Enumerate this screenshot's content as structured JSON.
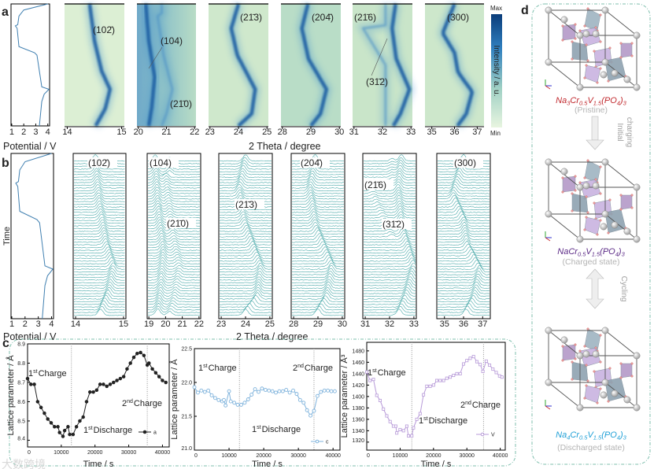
{
  "panel_labels": {
    "a": "a",
    "b": "b",
    "c": "c",
    "d": "d"
  },
  "panel_a": {
    "potential_axis": {
      "ticks": [
        1,
        2,
        3,
        4
      ],
      "label": "Potential / V"
    },
    "potential_curve": {
      "voltage": [
        4.0,
        2.0,
        1.6,
        1.5,
        1.3,
        1.45,
        1.6,
        2.9,
        3.1,
        3.3,
        3.5,
        4.1,
        3.7,
        3.5,
        3.4,
        3.3
      ],
      "time_fraction": [
        0.0,
        0.05,
        0.1,
        0.17,
        0.18,
        0.2,
        0.35,
        0.4,
        0.42,
        0.55,
        0.68,
        0.7,
        0.74,
        0.8,
        0.9,
        1.0
      ]
    },
    "xlabel": "2 Theta / degree",
    "colorbar": {
      "max": "Max",
      "min": "Min",
      "label": "Intensity / a. u.",
      "colors": [
        "#0b3d7a",
        "#2f7fbf",
        "#9fd0c4",
        "#e8f5e0"
      ]
    },
    "heatmaps": [
      {
        "xlim": [
          13.95,
          15.05
        ],
        "ticks": [
          14,
          15
        ],
        "labels": [
          "(102̄)"
        ]
      },
      {
        "xlim": [
          19.95,
          22.05
        ],
        "ticks": [
          20,
          21,
          22
        ],
        "labels": [
          "(104)",
          "(21̄0)"
        ]
      },
      {
        "xlim": [
          22.95,
          25.05
        ],
        "ticks": [
          23,
          24,
          25
        ],
        "labels": [
          "(21̄3)"
        ]
      },
      {
        "xlim": [
          27.95,
          30.05
        ],
        "ticks": [
          28,
          29,
          30
        ],
        "labels": [
          "(204̄)"
        ]
      },
      {
        "xlim": [
          30.95,
          33.05
        ],
        "ticks": [
          31,
          32,
          33
        ],
        "labels": [
          "(21̄6)",
          "(31̄2)"
        ]
      },
      {
        "xlim": [
          34.7,
          37.3
        ],
        "ticks": [
          35,
          36,
          37
        ],
        "labels": [
          "(300)"
        ]
      }
    ]
  },
  "panel_b": {
    "ylabel": "Time",
    "potential_axis": {
      "ticks": [
        1,
        2,
        3,
        4
      ],
      "label": "Potential / V"
    },
    "xlabel": "2 Theta / degree",
    "line_color": "#4aa9a9",
    "waterfalls": [
      {
        "xlim": [
          13.95,
          15.05
        ],
        "ticks": [
          14,
          15
        ],
        "labels": [
          "(102̄)"
        ]
      },
      {
        "xlim": [
          18.9,
          22.1
        ],
        "ticks": [
          19,
          20,
          21,
          22
        ],
        "labels": [
          "(104)",
          "(21̄0)"
        ]
      },
      {
        "xlim": [
          22.9,
          25.1
        ],
        "ticks": [
          23,
          24,
          25
        ],
        "labels": [
          "(21̄3)"
        ]
      },
      {
        "xlim": [
          27.9,
          30.1
        ],
        "ticks": [
          28,
          29,
          30
        ],
        "labels": [
          "(204̄)"
        ]
      },
      {
        "xlim": [
          30.9,
          33.1
        ],
        "ticks": [
          31,
          32,
          33
        ],
        "labels": [
          "(21̄6)",
          "(31̄2)"
        ]
      },
      {
        "xlim": [
          34.6,
          37.4
        ],
        "ticks": [
          35,
          36,
          37
        ],
        "labels": [
          "(300)"
        ]
      }
    ]
  },
  "chart_data": [
    {
      "type": "line",
      "title": "",
      "xlabel": "Time / s",
      "ylabel": "Lattice parameter / Å",
      "xlim": [
        0,
        42000
      ],
      "ylim": [
        8.365,
        8.9
      ],
      "xticks": [
        0,
        10000,
        20000,
        30000,
        40000
      ],
      "yticks": [
        8.4,
        8.5,
        8.6,
        8.7,
        8.8,
        8.9
      ],
      "ytick_labels": [
        "8.4",
        "8.5",
        "8.6",
        "8.7",
        "8.8",
        "8.9"
      ],
      "dividers": [
        13000,
        35500
      ],
      "series": [
        {
          "name": "a",
          "color": "#222222",
          "marker": "circle-filled",
          "x": [
            0,
            1000,
            2000,
            3000,
            4000,
            5000,
            6000,
            7000,
            8000,
            9000,
            9500,
            10500,
            11000,
            12000,
            12500,
            13500,
            14500,
            15500,
            16500,
            17500,
            18500,
            19500,
            20500,
            21500,
            22500,
            23500,
            24500,
            25500,
            26500,
            27500,
            28500,
            29500,
            30500,
            31500,
            32500,
            33500,
            34500,
            35500,
            36000,
            37000,
            38000,
            39000,
            40000,
            41000
          ],
          "y": [
            8.72,
            8.69,
            8.69,
            8.6,
            8.57,
            8.54,
            8.51,
            8.49,
            8.47,
            8.47,
            8.44,
            8.42,
            8.45,
            8.47,
            8.43,
            8.43,
            8.47,
            8.5,
            8.52,
            8.6,
            8.65,
            8.65,
            8.66,
            8.69,
            8.69,
            8.68,
            8.69,
            8.7,
            8.71,
            8.72,
            8.73,
            8.77,
            8.8,
            8.83,
            8.85,
            8.855,
            8.84,
            8.79,
            8.8,
            8.77,
            8.75,
            8.73,
            8.71,
            8.7
          ]
        }
      ],
      "annotations": [
        {
          "num": "1",
          "sup": "st",
          "text": "Charge"
        },
        {
          "num": "1",
          "sup": "st",
          "text": "Discharge"
        },
        {
          "num": "2",
          "sup": "nd",
          "text": "Charge"
        }
      ],
      "legend": "bottom-right"
    },
    {
      "type": "line",
      "title": "",
      "xlabel": "Time / s",
      "ylabel": "Lattice parameter / Å",
      "xlim": [
        0,
        42000
      ],
      "ylim": [
        21.0,
        22.5
      ],
      "xticks": [
        0,
        10000,
        20000,
        30000,
        40000
      ],
      "yticks": [
        21.0,
        21.5,
        22.0,
        22.5
      ],
      "ytick_labels": [
        "21.0",
        "21.5",
        "22.0",
        "22.5"
      ],
      "dividers": [
        13000,
        34500
      ],
      "series": [
        {
          "name": "c",
          "color": "#7fb3dc",
          "marker": "circle-open",
          "x": [
            0,
            1000,
            2000,
            3000,
            4000,
            5000,
            6000,
            7000,
            8000,
            8500,
            9000,
            10000,
            10500,
            11500,
            12500,
            13500,
            14500,
            15500,
            16500,
            17500,
            18500,
            19500,
            20500,
            21500,
            22500,
            23500,
            24500,
            25500,
            26500,
            27500,
            28500,
            29500,
            30500,
            31500,
            32500,
            33500,
            34500,
            35500,
            36500,
            37500,
            38500,
            39500,
            40500
          ],
          "y": [
            21.93,
            21.85,
            21.88,
            21.86,
            21.88,
            21.81,
            21.77,
            21.74,
            21.72,
            21.74,
            21.66,
            21.87,
            21.72,
            21.7,
            21.67,
            21.67,
            21.7,
            21.75,
            21.82,
            21.9,
            21.86,
            21.91,
            21.89,
            21.88,
            21.87,
            21.85,
            21.87,
            21.87,
            21.89,
            21.85,
            21.88,
            21.83,
            21.74,
            21.7,
            21.59,
            21.51,
            21.58,
            21.8,
            21.86,
            21.88,
            21.88,
            21.87,
            21.87
          ]
        }
      ],
      "annotations": [
        {
          "num": "1",
          "sup": "st",
          "text": "Charge"
        },
        {
          "num": "1",
          "sup": "st",
          "text": "Discharge"
        },
        {
          "num": "2",
          "sup": "nd",
          "text": "Charge"
        }
      ],
      "legend": "bottom-right"
    },
    {
      "type": "line",
      "title": "",
      "xlabel": "Time / s",
      "ylabel": "Lattice parameter / Å³",
      "xlim": [
        0,
        41500
      ],
      "ylim": [
        1306,
        1495
      ],
      "xticks": [
        0,
        10000,
        20000,
        30000,
        40000
      ],
      "yticks": [
        1320,
        1340,
        1360,
        1380,
        1400,
        1420,
        1440,
        1460,
        1480
      ],
      "ytick_labels": [
        "1320",
        "1340",
        "1360",
        "1380",
        "1400",
        "1420",
        "1440",
        "1460",
        "1480"
      ],
      "dividers": [
        13500,
        35000
      ],
      "series": [
        {
          "name": "V",
          "color": "#b79ad8",
          "marker": "square-open",
          "x": [
            0,
            1000,
            2000,
            3000,
            4000,
            5000,
            6000,
            7000,
            8000,
            8700,
            9000,
            10000,
            11000,
            12000,
            12500,
            13500,
            14000,
            15000,
            16000,
            17000,
            18000,
            19000,
            20000,
            21000,
            22000,
            23000,
            24000,
            25000,
            26000,
            27000,
            28000,
            29000,
            30000,
            31000,
            32000,
            33000,
            34000,
            34800,
            35800,
            36800,
            37800,
            38800,
            39800,
            40500
          ],
          "y": [
            1443,
            1428,
            1430,
            1402,
            1393,
            1378,
            1366,
            1356,
            1348,
            1348,
            1336,
            1342,
            1340,
            1348,
            1331,
            1331,
            1345,
            1360,
            1370,
            1403,
            1418,
            1418,
            1420,
            1428,
            1428,
            1428,
            1432,
            1434,
            1437,
            1440,
            1440,
            1457,
            1463,
            1467,
            1470,
            1461,
            1456,
            1444,
            1462,
            1455,
            1448,
            1442,
            1436,
            1434
          ]
        }
      ],
      "annotations": [
        {
          "num": "1",
          "sup": "st",
          "text": "Charge"
        },
        {
          "num": "1",
          "sup": "st",
          "text": "Discharge"
        },
        {
          "num": "2",
          "sup": "nd",
          "text": "Charge"
        }
      ],
      "legend": "bottom-right"
    }
  ],
  "panel_d": {
    "structures": [
      {
        "formula": [
          {
            "t": "Na"
          },
          {
            "t": "3",
            "sub": true
          },
          {
            "t": "Cr"
          },
          {
            "t": "0.5",
            "sub": true
          },
          {
            "t": "V"
          },
          {
            "t": "1.5",
            "sub": true
          },
          {
            "t": "(PO"
          },
          {
            "t": "4",
            "sub": true
          },
          {
            "t": ")"
          },
          {
            "t": "3",
            "sub": true
          }
        ],
        "state": "(Pristine)",
        "color": "#c0282d"
      },
      {
        "formula": [
          {
            "t": "NaCr"
          },
          {
            "t": "0.5",
            "sub": true
          },
          {
            "t": "V"
          },
          {
            "t": "1.5",
            "sub": true
          },
          {
            "t": "(PO"
          },
          {
            "t": "4",
            "sub": true
          },
          {
            "t": ")"
          },
          {
            "t": "3",
            "sub": true
          }
        ],
        "state": "(Charged state)",
        "color": "#5b2a86"
      },
      {
        "formula": [
          {
            "t": "Na"
          },
          {
            "t": "4",
            "sub": true
          },
          {
            "t": "Cr"
          },
          {
            "t": "0.5",
            "sub": true
          },
          {
            "t": "V"
          },
          {
            "t": "1.5",
            "sub": true
          },
          {
            "t": "(PO"
          },
          {
            "t": "4",
            "sub": true
          },
          {
            "t": ")"
          },
          {
            "t": "3",
            "sub": true
          }
        ],
        "state": "(Discharged state)",
        "color": "#1e9fd6"
      }
    ],
    "arrows": [
      {
        "label_lines": [
          "Initial",
          "charging"
        ],
        "type": "down"
      },
      {
        "label_lines": [
          "Cycling"
        ],
        "type": "double"
      }
    ]
  },
  "watermark": "大数跨境"
}
